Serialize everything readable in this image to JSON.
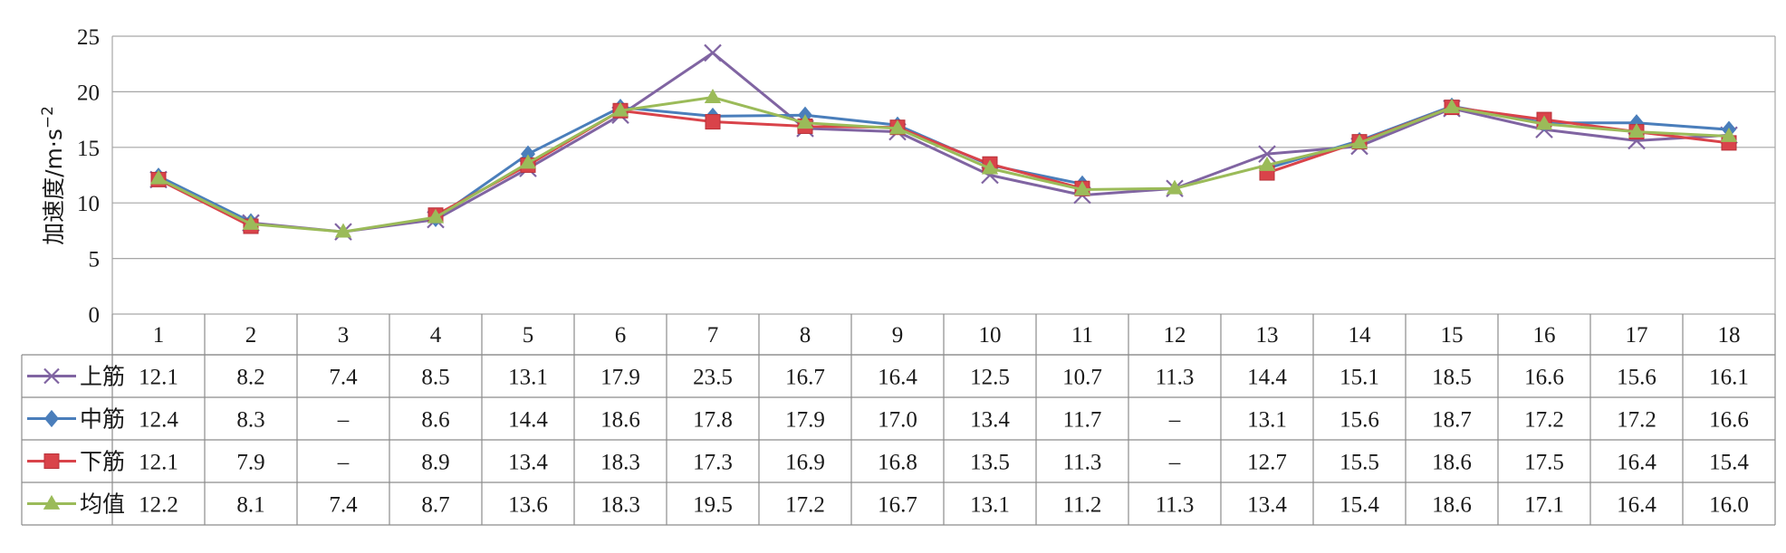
{
  "chart_data": {
    "type": "line",
    "ylabel": "加速度/m·s",
    "ylabel_exponent": "−2",
    "yticks": [
      0,
      5,
      10,
      15,
      20,
      25
    ],
    "ylim": [
      0,
      25
    ],
    "grid": true,
    "legend_placement": "table-left",
    "categories": [
      "1",
      "2",
      "3",
      "4",
      "5",
      "6",
      "7",
      "8",
      "9",
      "10",
      "11",
      "12",
      "13",
      "14",
      "15",
      "16",
      "17",
      "18"
    ],
    "missing_label": "–",
    "series": [
      {
        "name": "上筋",
        "color": "#8064a2",
        "marker": "x",
        "values": [
          12.1,
          8.2,
          7.4,
          8.5,
          13.1,
          17.9,
          23.5,
          16.7,
          16.4,
          12.5,
          10.7,
          11.3,
          14.4,
          15.1,
          18.5,
          16.6,
          15.6,
          16.1
        ],
        "labels": [
          "12.1",
          "8.2",
          "7.4",
          "8.5",
          "13.1",
          "17.9",
          "23.5",
          "16.7",
          "16.4",
          "12.5",
          "10.7",
          "11.3",
          "14.4",
          "15.1",
          "18.5",
          "16.6",
          "15.6",
          "16.1"
        ]
      },
      {
        "name": "中筋",
        "color": "#4a7ebb",
        "marker": "diamond",
        "values": [
          12.4,
          8.3,
          null,
          8.6,
          14.4,
          18.6,
          17.8,
          17.9,
          17.0,
          13.4,
          11.7,
          null,
          13.1,
          15.6,
          18.7,
          17.2,
          17.2,
          16.6
        ],
        "labels": [
          "12.4",
          "8.3",
          "–",
          "8.6",
          "14.4",
          "18.6",
          "17.8",
          "17.9",
          "17.0",
          "13.4",
          "11.7",
          "–",
          "13.1",
          "15.6",
          "18.7",
          "17.2",
          "17.2",
          "16.6"
        ]
      },
      {
        "name": "下筋",
        "color": "#d9434a",
        "marker": "square",
        "values": [
          12.1,
          7.9,
          null,
          8.9,
          13.4,
          18.3,
          17.3,
          16.9,
          16.8,
          13.5,
          11.3,
          null,
          12.7,
          15.5,
          18.6,
          17.5,
          16.4,
          15.4
        ],
        "labels": [
          "12.1",
          "7.9",
          "–",
          "8.9",
          "13.4",
          "18.3",
          "17.3",
          "16.9",
          "16.8",
          "13.5",
          "11.3",
          "–",
          "12.7",
          "15.5",
          "18.6",
          "17.5",
          "16.4",
          "15.4"
        ]
      },
      {
        "name": "均值",
        "color": "#9bbb59",
        "marker": "triangle",
        "values": [
          12.2,
          8.1,
          7.4,
          8.7,
          13.6,
          18.3,
          19.5,
          17.2,
          16.7,
          13.1,
          11.2,
          11.3,
          13.4,
          15.4,
          18.6,
          17.1,
          16.4,
          16.0
        ],
        "labels": [
          "12.2",
          "8.1",
          "7.4",
          "8.7",
          "13.6",
          "18.3",
          "19.5",
          "17.2",
          "16.7",
          "13.1",
          "11.2",
          "11.3",
          "13.4",
          "15.4",
          "18.6",
          "17.1",
          "16.4",
          "16.0"
        ]
      }
    ]
  },
  "colors": {
    "grid": "#a6a6a6",
    "table_border": "#8c8c8c",
    "text": "#1a1a1a"
  }
}
